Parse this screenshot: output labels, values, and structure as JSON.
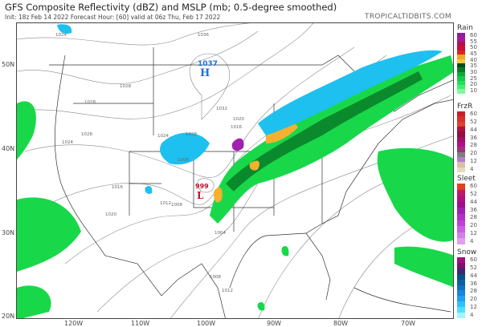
{
  "header": {
    "title": "GFS Composite Reflectivity (dBZ) and MSLP (mb; 0.5-degree smoothed)",
    "subtitle": "Init: 18z Feb 14 2022   Forecast Hour: [60]   valid at 06z Thu, Feb 17 2022",
    "site": "TROPICALTIDBITS.COM"
  },
  "axes": {
    "lat_labels": [
      "50N",
      "40N",
      "30N",
      "20N"
    ],
    "lon_labels": [
      "120W",
      "110W",
      "100W",
      "90W",
      "80W",
      "70W"
    ]
  },
  "pressure_centers": [
    {
      "type": "H",
      "value": "1037",
      "color": "#1f6fd6"
    },
    {
      "type": "L",
      "value": "999",
      "color": "#c0102a"
    }
  ],
  "isobar_labels": [
    "1024",
    "1036",
    "1028",
    "1028",
    "1032",
    "1028",
    "1028",
    "1024",
    "1024",
    "1020",
    "1016",
    "1008",
    "1012",
    "1016",
    "1008",
    "1004",
    "1008",
    "1012",
    "1020"
  ],
  "legend": [
    {
      "title": "Rain",
      "labels": [
        "60",
        "55",
        "50",
        "45",
        "40",
        "35",
        "30",
        "25",
        "20",
        "10"
      ],
      "colors": [
        "#8a1f9e",
        "#a8179e",
        "#b0124e",
        "#c8102e",
        "#d22",
        "#f5a623",
        "#f7c843",
        "#044f1c",
        "#0a7a28",
        "#10a83a",
        "#18c84a",
        "#22e05a",
        "#40f070",
        "#80fa9a"
      ]
    },
    {
      "title": "FrzR",
      "labels": [
        "60",
        "52",
        "44",
        "36",
        "28",
        "20",
        "12",
        "4"
      ],
      "colors": [
        "#c8202a",
        "#d8302a",
        "#e0402e",
        "#b01040",
        "#901040",
        "#a0106a",
        "#b0108a",
        "#a03080",
        "#808080",
        "#b080c8",
        "#d8c0a8",
        "#e8d8c0"
      ]
    },
    {
      "title": "Sleet",
      "labels": [
        "60",
        "52",
        "44",
        "36",
        "28",
        "20",
        "12",
        "4"
      ],
      "colors": [
        "#e04020",
        "#c01868",
        "#b01080",
        "#9a1090",
        "#a020b0",
        "#b030c8",
        "#c040d8",
        "#c860e0",
        "#d080e8",
        "#e0a0f0"
      ]
    },
    {
      "title": "Snow",
      "labels": [
        "60",
        "52",
        "44",
        "36",
        "28",
        "20",
        "12",
        "4"
      ],
      "colors": [
        "#a01080",
        "#801070",
        "#3a2a70",
        "#0a5080",
        "#0a60a0",
        "#1070c0",
        "#1888d8",
        "#20a0f0",
        "#30c0ff",
        "#50e0ff",
        "#a0f4ff"
      ]
    }
  ]
}
